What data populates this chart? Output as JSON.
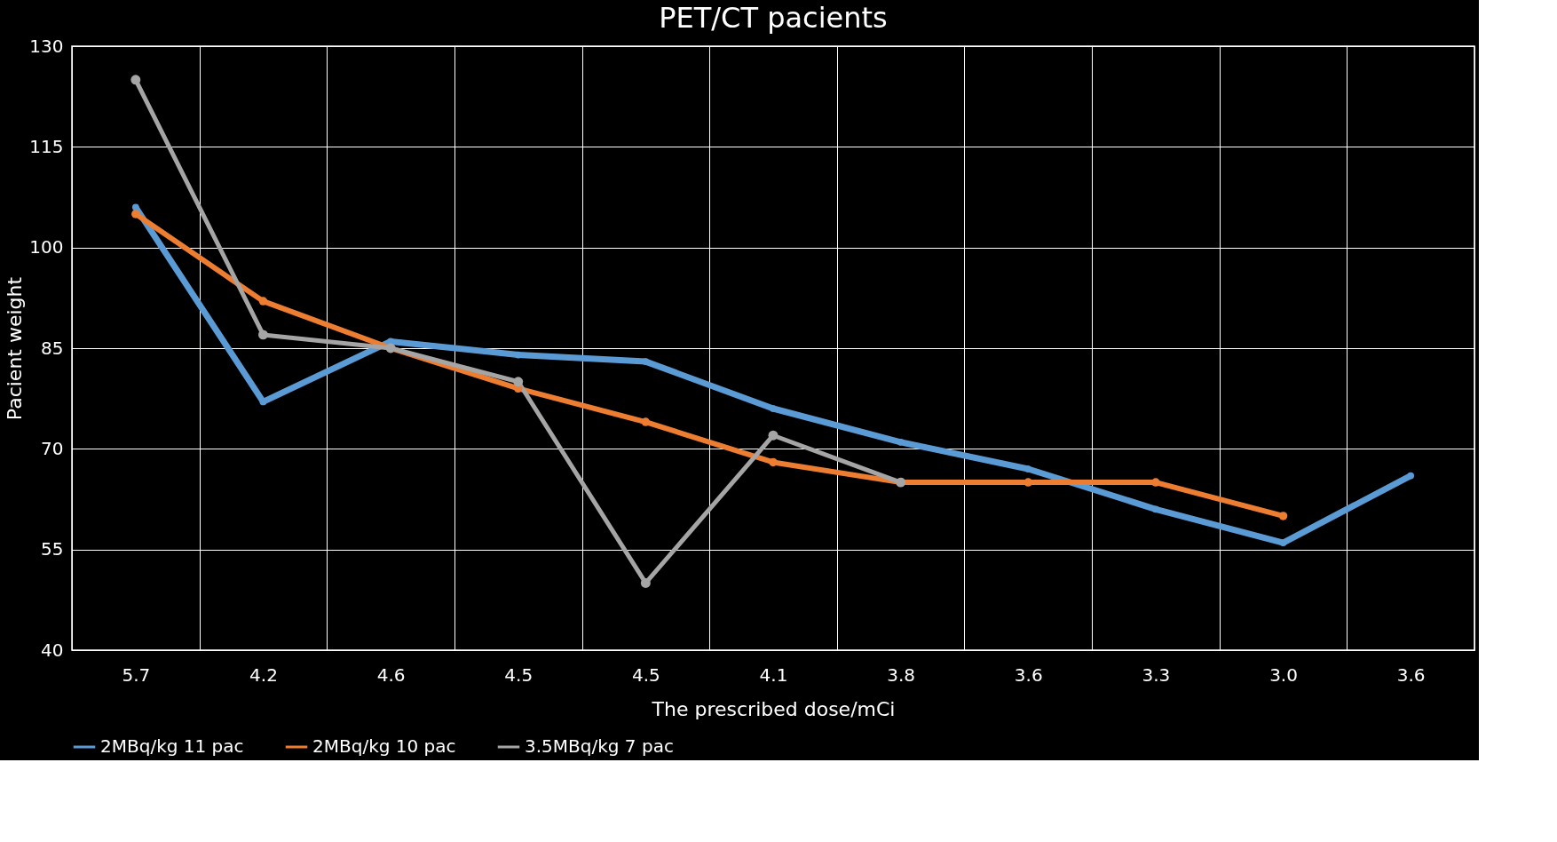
{
  "chart_data": {
    "type": "line",
    "title": "PET/CT pacients",
    "xlabel": "The prescribed dose/mCi",
    "ylabel": "Pacient weight",
    "categories": [
      "5.7",
      "4.2",
      "4.6",
      "4.5",
      "4.5",
      "4.1",
      "3.8",
      "3.6",
      "3.3",
      "3.0",
      "3.6"
    ],
    "series": [
      {
        "name": "2MBq/kg 11 pac",
        "color": "#5b9bd5",
        "values": [
          106,
          77,
          86,
          84,
          83,
          76,
          71,
          67,
          61,
          56,
          66
        ]
      },
      {
        "name": "2MBq/kg 10 pac",
        "color": "#ed7d31",
        "values": [
          105,
          92,
          85,
          79,
          74,
          68,
          65,
          65,
          65,
          60,
          null
        ]
      },
      {
        "name": "3.5MBq/kg 7 pac",
        "color": "#a5a5a5",
        "values": [
          125,
          87,
          85,
          80,
          50,
          72,
          65,
          null,
          null,
          null,
          null
        ]
      }
    ],
    "ylim": [
      40,
      130
    ],
    "yticks": [
      40,
      55,
      70,
      85,
      100,
      115,
      130
    ],
    "grid": true,
    "legend": "bottom",
    "marker": "circle",
    "line_style": "solid"
  }
}
